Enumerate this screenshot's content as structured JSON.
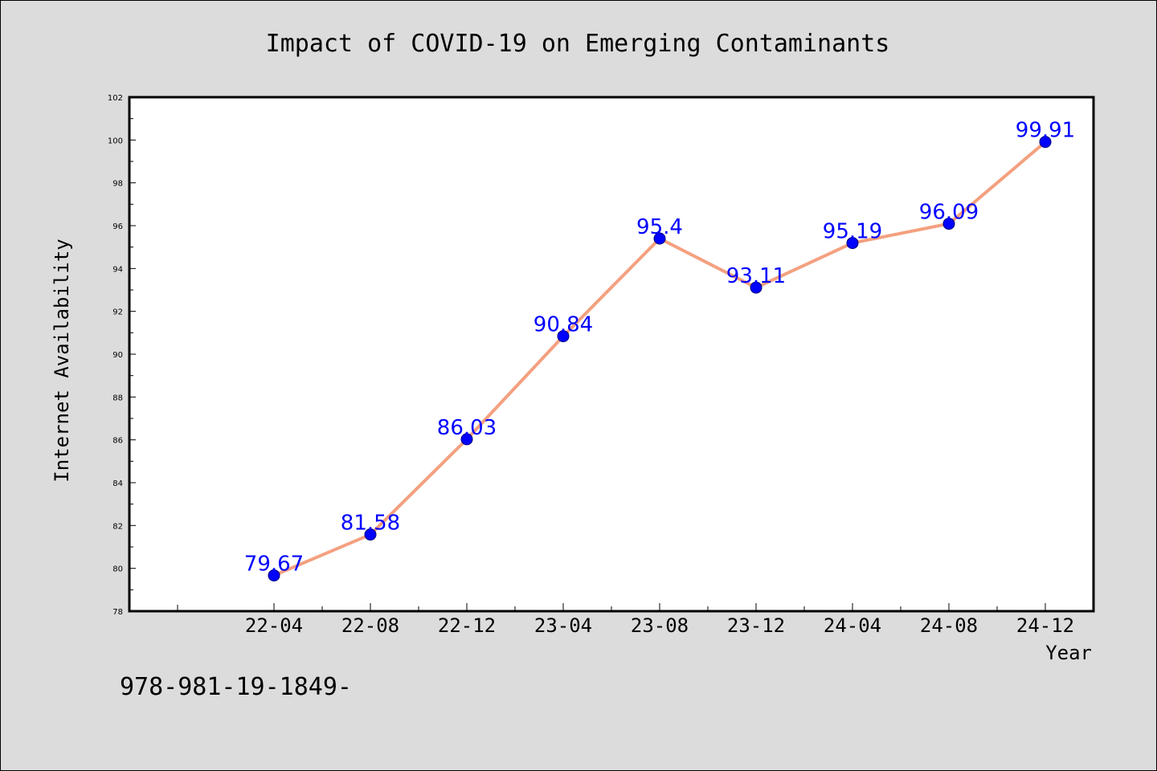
{
  "chart_data": {
    "type": "line",
    "title": "Impact of COVID-19 on Emerging Contaminants",
    "xlabel": "Year",
    "ylabel": "Internet Availability",
    "categories": [
      "22-04",
      "22-08",
      "22-12",
      "23-04",
      "23-08",
      "23-12",
      "24-04",
      "24-08",
      "24-12"
    ],
    "series": [
      {
        "values": [
          79.67,
          81.58,
          86.03,
          90.84,
          95.4,
          93.11,
          95.19,
          96.09,
          99.91
        ],
        "labels": [
          "79.67",
          "81.58",
          "86.03",
          "90.84",
          "95.4",
          "93.11",
          "95.19",
          "96.09",
          "99.91"
        ],
        "line_color": "#f4a07f",
        "marker_color": "#0000ff"
      }
    ],
    "ylim": [
      78,
      102
    ],
    "yticks": [
      78,
      80,
      82,
      84,
      86,
      88,
      90,
      92,
      94,
      96,
      98,
      100,
      102
    ],
    "grid": false,
    "legend": "none"
  },
  "footer": {
    "text": "978-981-19-1849-"
  }
}
